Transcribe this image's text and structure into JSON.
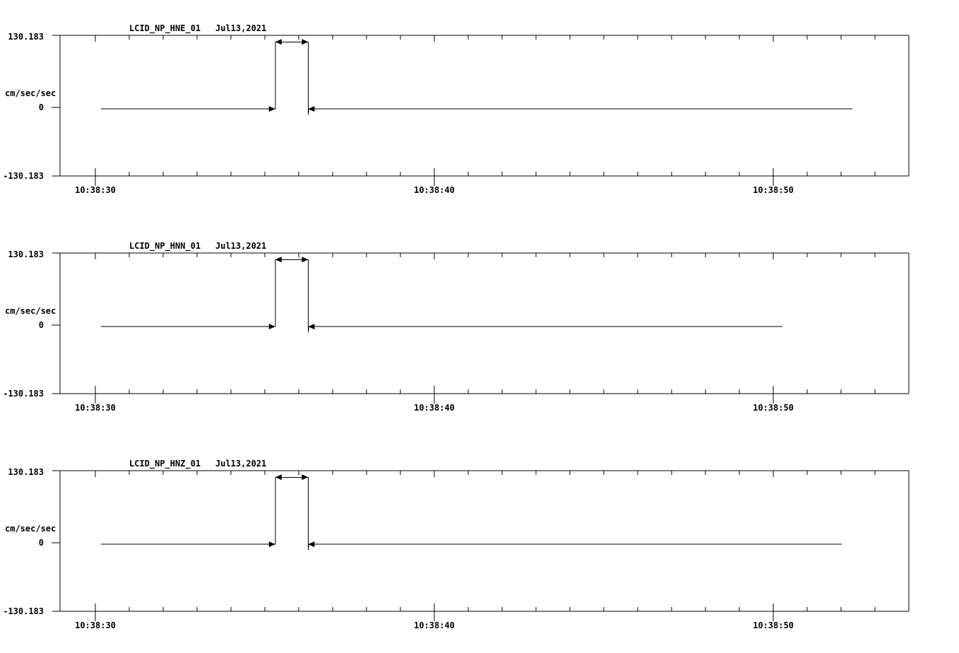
{
  "page": {
    "background_color": "#ffffff",
    "trace_color": "#000000",
    "text_color": "#000000"
  },
  "chart_data": {
    "type": "line",
    "description": "Three stacked strong-motion accelerometer traces with a rectangular calibration pulse",
    "grid": false,
    "legend": false,
    "x_axis": {
      "seconds_reference": "10:38:00",
      "range_sec": [
        28.96,
        54.0
      ],
      "minor_tick_step_sec": 1,
      "major_tick_sec": [
        30,
        40,
        50
      ],
      "major_tick_labels": [
        "10:38:30",
        "10:38:40",
        "10:38:50"
      ]
    },
    "y_axis": {
      "label": "cm/sec/sec",
      "min": -130.183,
      "max": 130.183,
      "tick_values": [
        130.183,
        0,
        -130.183
      ],
      "tick_labels": [
        "130.183",
        "0",
        "-130.183"
      ]
    },
    "panels": [
      {
        "channel": "LCID_NP_HNE_01",
        "date": "Jul13,2021",
        "units": "cm/sec/sec",
        "y_labels": {
          "max": "130.183",
          "zero": "0",
          "min": "-130.183"
        },
        "x_labels": [
          "10:38:30",
          "10:38:40",
          "10:38:50"
        ],
        "trace": {
          "baseline_value": -6,
          "pulse_value": 118,
          "undershoot_value": -17,
          "start_sec": 30.17,
          "rise_sec": 35.31,
          "fall_sec": 36.28,
          "end_sec": 52.33,
          "points": [
            [
              30.17,
              -6
            ],
            [
              35.31,
              -6
            ],
            [
              35.31,
              118
            ],
            [
              36.28,
              118
            ],
            [
              36.28,
              -17
            ],
            [
              36.3,
              -6
            ],
            [
              52.33,
              -6
            ]
          ]
        },
        "markers": [
          {
            "at_sec": 35.31,
            "value": -6,
            "direction": "right"
          },
          {
            "at_sec": 35.31,
            "value": 118,
            "direction": "left"
          },
          {
            "at_sec": 36.28,
            "value": 118,
            "direction": "right"
          },
          {
            "at_sec": 36.28,
            "value": -6,
            "direction": "left"
          }
        ]
      },
      {
        "channel": "LCID_NP_HNN_01",
        "date": "Jul13,2021",
        "units": "cm/sec/sec",
        "y_labels": {
          "max": "130.183",
          "zero": "0",
          "min": "-130.183"
        },
        "x_labels": [
          "10:38:30",
          "10:38:40",
          "10:38:50"
        ],
        "trace": {
          "baseline_value": -6,
          "pulse_value": 118,
          "undershoot_value": -17,
          "start_sec": 30.17,
          "rise_sec": 35.31,
          "fall_sec": 36.28,
          "end_sec": 50.27,
          "points": [
            [
              30.17,
              -6
            ],
            [
              35.31,
              -6
            ],
            [
              35.31,
              118
            ],
            [
              36.28,
              118
            ],
            [
              36.28,
              -17
            ],
            [
              36.3,
              -6
            ],
            [
              50.27,
              -6
            ]
          ]
        },
        "markers": [
          {
            "at_sec": 35.31,
            "value": -6,
            "direction": "right"
          },
          {
            "at_sec": 35.31,
            "value": 118,
            "direction": "left"
          },
          {
            "at_sec": 36.28,
            "value": 118,
            "direction": "right"
          },
          {
            "at_sec": 36.28,
            "value": -6,
            "direction": "left"
          }
        ]
      },
      {
        "channel": "LCID_NP_HNZ_01",
        "date": "Jul13,2021",
        "units": "cm/sec/sec",
        "y_labels": {
          "max": "130.183",
          "zero": "0",
          "min": "-130.183"
        },
        "x_labels": [
          "10:38:30",
          "10:38:40",
          "10:38:50"
        ],
        "trace": {
          "baseline_value": -6,
          "pulse_value": 118,
          "undershoot_value": -17,
          "start_sec": 30.17,
          "rise_sec": 35.31,
          "fall_sec": 36.28,
          "end_sec": 52.02,
          "points": [
            [
              30.17,
              -6
            ],
            [
              35.31,
              -6
            ],
            [
              35.31,
              118
            ],
            [
              36.28,
              118
            ],
            [
              36.28,
              -17
            ],
            [
              36.3,
              -6
            ],
            [
              52.02,
              -6
            ]
          ]
        },
        "markers": [
          {
            "at_sec": 35.31,
            "value": -6,
            "direction": "right"
          },
          {
            "at_sec": 35.31,
            "value": 118,
            "direction": "left"
          },
          {
            "at_sec": 36.28,
            "value": 118,
            "direction": "right"
          },
          {
            "at_sec": 36.28,
            "value": -6,
            "direction": "left"
          }
        ]
      }
    ]
  }
}
